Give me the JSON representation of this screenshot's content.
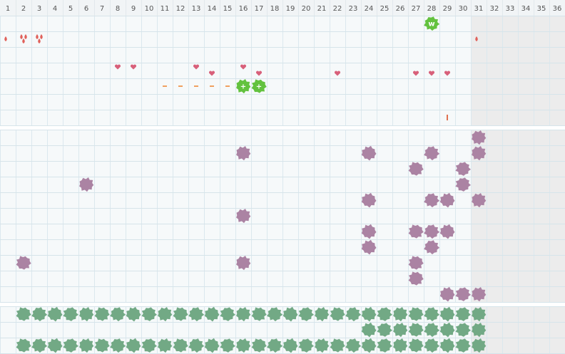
{
  "days": [
    1,
    2,
    3,
    4,
    5,
    6,
    7,
    8,
    9,
    10,
    11,
    12,
    13,
    14,
    15,
    16,
    17,
    18,
    19,
    20,
    21,
    22,
    23,
    24,
    25,
    26,
    27,
    28,
    29,
    30,
    31,
    32,
    33,
    34,
    35,
    36
  ],
  "sections": [
    {
      "color": "#63c23f",
      "rows": [
        {
          "marks": [
            {
              "day": 28,
              "kind": "blob",
              "label": "w"
            }
          ]
        },
        {
          "marks": [
            {
              "day": 1,
              "kind": "drop",
              "count": 1
            },
            {
              "day": 2,
              "kind": "drop",
              "count": 3
            },
            {
              "day": 3,
              "kind": "drop",
              "count": 3
            },
            {
              "day": 31,
              "kind": "drop",
              "count": 1
            }
          ]
        },
        {
          "marks": []
        },
        {
          "marks": [
            {
              "day": 8,
              "kind": "heart",
              "level": "high"
            },
            {
              "day": 9,
              "kind": "heart",
              "level": "high"
            },
            {
              "day": 13,
              "kind": "heart",
              "level": "high"
            },
            {
              "day": 16,
              "kind": "heart",
              "level": "high"
            },
            {
              "day": 14,
              "kind": "heart",
              "level": "low"
            },
            {
              "day": 17,
              "kind": "heart",
              "level": "low"
            },
            {
              "day": 22,
              "kind": "heart",
              "level": "low"
            },
            {
              "day": 27,
              "kind": "heart",
              "level": "low"
            },
            {
              "day": 28,
              "kind": "heart",
              "level": "low"
            },
            {
              "day": 29,
              "kind": "heart",
              "level": "low"
            }
          ]
        },
        {
          "marks": [
            {
              "day": 11,
              "kind": "dash"
            },
            {
              "day": 12,
              "kind": "dash"
            },
            {
              "day": 13,
              "kind": "dash"
            },
            {
              "day": 14,
              "kind": "dash"
            },
            {
              "day": 15,
              "kind": "dash"
            },
            {
              "day": 16,
              "kind": "blob",
              "label": "+"
            },
            {
              "day": 17,
              "kind": "blob",
              "label": "+"
            }
          ]
        },
        {
          "marks": []
        },
        {
          "marks": [
            {
              "day": 29,
              "kind": "bar"
            }
          ]
        }
      ]
    },
    {
      "color": "#ab83a3",
      "rows": [
        {
          "marks": [
            {
              "day": 31,
              "kind": "blob"
            }
          ]
        },
        {
          "marks": [
            {
              "day": 16,
              "kind": "blob"
            },
            {
              "day": 24,
              "kind": "blob"
            },
            {
              "day": 28,
              "kind": "blob"
            },
            {
              "day": 31,
              "kind": "blob"
            }
          ]
        },
        {
          "marks": [
            {
              "day": 27,
              "kind": "blob"
            },
            {
              "day": 30,
              "kind": "blob"
            }
          ]
        },
        {
          "marks": [
            {
              "day": 6,
              "kind": "blob"
            },
            {
              "day": 30,
              "kind": "blob"
            }
          ]
        },
        {
          "marks": [
            {
              "day": 24,
              "kind": "blob"
            },
            {
              "day": 28,
              "kind": "blob"
            },
            {
              "day": 29,
              "kind": "blob"
            },
            {
              "day": 31,
              "kind": "blob"
            }
          ]
        },
        {
          "marks": [
            {
              "day": 16,
              "kind": "blob"
            }
          ]
        },
        {
          "marks": [
            {
              "day": 24,
              "kind": "blob"
            },
            {
              "day": 27,
              "kind": "blob"
            },
            {
              "day": 28,
              "kind": "blob"
            },
            {
              "day": 29,
              "kind": "blob"
            }
          ]
        },
        {
          "marks": [
            {
              "day": 24,
              "kind": "blob"
            },
            {
              "day": 28,
              "kind": "blob"
            }
          ]
        },
        {
          "marks": [
            {
              "day": 2,
              "kind": "blob"
            },
            {
              "day": 16,
              "kind": "blob"
            },
            {
              "day": 27,
              "kind": "blob"
            }
          ]
        },
        {
          "marks": [
            {
              "day": 27,
              "kind": "blob"
            }
          ]
        },
        {
          "marks": [
            {
              "day": 29,
              "kind": "blob"
            },
            {
              "day": 30,
              "kind": "blob"
            },
            {
              "day": 31,
              "kind": "blob"
            }
          ]
        }
      ]
    },
    {
      "color": "#72a985",
      "rows": [
        {
          "marks": [
            {
              "day": 2,
              "kind": "blob"
            },
            {
              "day": 3,
              "kind": "blob"
            },
            {
              "day": 4,
              "kind": "blob"
            },
            {
              "day": 5,
              "kind": "blob"
            },
            {
              "day": 6,
              "kind": "blob"
            },
            {
              "day": 7,
              "kind": "blob"
            },
            {
              "day": 8,
              "kind": "blob"
            },
            {
              "day": 9,
              "kind": "blob"
            },
            {
              "day": 10,
              "kind": "blob"
            },
            {
              "day": 11,
              "kind": "blob"
            },
            {
              "day": 12,
              "kind": "blob"
            },
            {
              "day": 13,
              "kind": "blob"
            },
            {
              "day": 14,
              "kind": "blob"
            },
            {
              "day": 15,
              "kind": "blob"
            },
            {
              "day": 16,
              "kind": "blob"
            },
            {
              "day": 17,
              "kind": "blob"
            },
            {
              "day": 18,
              "kind": "blob"
            },
            {
              "day": 19,
              "kind": "blob"
            },
            {
              "day": 20,
              "kind": "blob"
            },
            {
              "day": 21,
              "kind": "blob"
            },
            {
              "day": 22,
              "kind": "blob"
            },
            {
              "day": 23,
              "kind": "blob"
            },
            {
              "day": 24,
              "kind": "blob"
            },
            {
              "day": 25,
              "kind": "blob"
            },
            {
              "day": 26,
              "kind": "blob"
            },
            {
              "day": 27,
              "kind": "blob"
            },
            {
              "day": 28,
              "kind": "blob"
            },
            {
              "day": 29,
              "kind": "blob"
            },
            {
              "day": 30,
              "kind": "blob"
            },
            {
              "day": 31,
              "kind": "blob"
            }
          ]
        },
        {
          "marks": [
            {
              "day": 24,
              "kind": "blob"
            },
            {
              "day": 25,
              "kind": "blob"
            },
            {
              "day": 26,
              "kind": "blob"
            },
            {
              "day": 27,
              "kind": "blob"
            },
            {
              "day": 28,
              "kind": "blob"
            },
            {
              "day": 29,
              "kind": "blob"
            },
            {
              "day": 30,
              "kind": "blob"
            },
            {
              "day": 31,
              "kind": "blob"
            }
          ]
        },
        {
          "marks": [
            {
              "day": 2,
              "kind": "blob"
            },
            {
              "day": 3,
              "kind": "blob"
            },
            {
              "day": 4,
              "kind": "blob"
            },
            {
              "day": 5,
              "kind": "blob"
            },
            {
              "day": 6,
              "kind": "blob"
            },
            {
              "day": 7,
              "kind": "blob"
            },
            {
              "day": 8,
              "kind": "blob"
            },
            {
              "day": 9,
              "kind": "blob"
            },
            {
              "day": 10,
              "kind": "blob"
            },
            {
              "day": 11,
              "kind": "blob"
            },
            {
              "day": 12,
              "kind": "blob"
            },
            {
              "day": 13,
              "kind": "blob"
            },
            {
              "day": 14,
              "kind": "blob"
            },
            {
              "day": 15,
              "kind": "blob"
            },
            {
              "day": 16,
              "kind": "blob"
            },
            {
              "day": 17,
              "kind": "blob"
            },
            {
              "day": 18,
              "kind": "blob"
            },
            {
              "day": 19,
              "kind": "blob"
            },
            {
              "day": 20,
              "kind": "blob"
            },
            {
              "day": 21,
              "kind": "blob"
            },
            {
              "day": 22,
              "kind": "blob"
            },
            {
              "day": 23,
              "kind": "blob"
            },
            {
              "day": 24,
              "kind": "blob"
            },
            {
              "day": 25,
              "kind": "blob"
            },
            {
              "day": 26,
              "kind": "blob"
            },
            {
              "day": 27,
              "kind": "blob"
            },
            {
              "day": 28,
              "kind": "blob"
            },
            {
              "day": 29,
              "kind": "blob"
            },
            {
              "day": 30,
              "kind": "blob"
            },
            {
              "day": 31,
              "kind": "blob"
            }
          ]
        }
      ]
    }
  ]
}
